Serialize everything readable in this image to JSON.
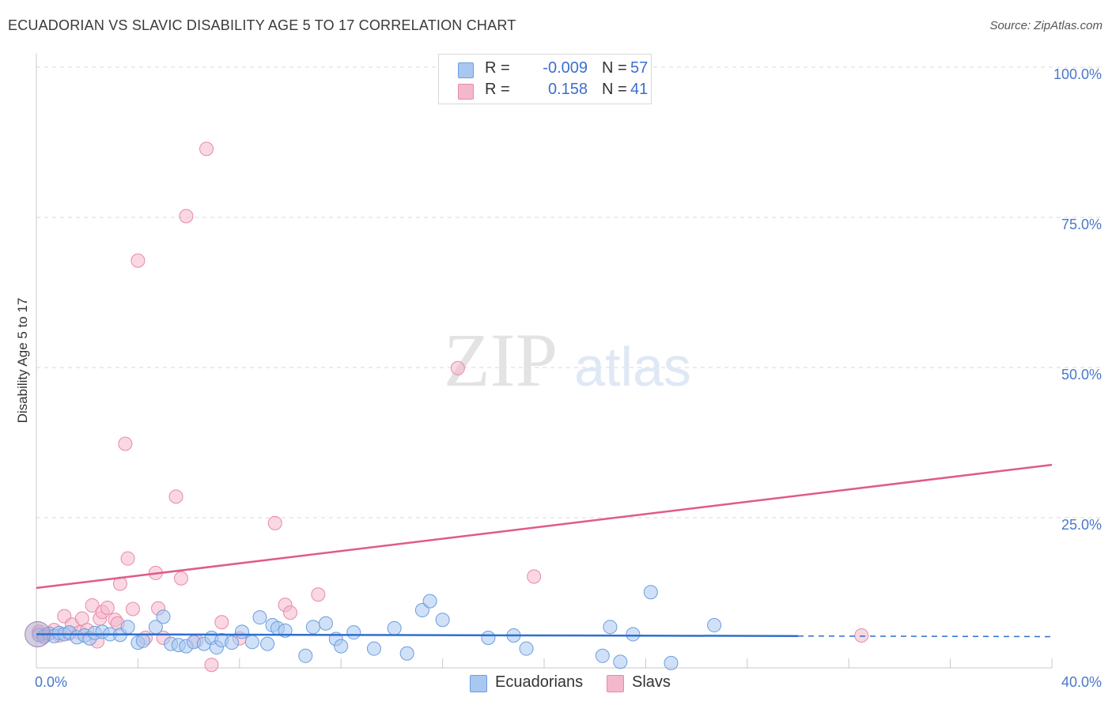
{
  "title": "ECUADORIAN VS SLAVIC DISABILITY AGE 5 TO 17 CORRELATION CHART",
  "source": "Source: ZipAtlas.com",
  "watermark": {
    "zip": "ZIP",
    "atlas": "atlas"
  },
  "legend": {
    "rows": [
      {
        "r_label": "R =",
        "r_value": "-0.009",
        "n_label": "N =",
        "n_value": "57"
      },
      {
        "r_label": "R =",
        "r_value": "0.158",
        "n_label": "N =",
        "n_value": "41"
      }
    ]
  },
  "bottom_legend": {
    "ecuadorians": "Ecuadorians",
    "slavs": "Slavs"
  },
  "colors": {
    "blue_fill": "#a9c8f0",
    "blue_stroke": "#6b9de0",
    "blue_line": "#2e6fd0",
    "pink_fill": "#f4b8cc",
    "pink_stroke": "#e889a8",
    "pink_line": "#e05a8a",
    "grid": "#d9d9d9",
    "tick": "#4a78c8"
  },
  "chart_data": {
    "type": "scatter",
    "title": "ECUADORIAN VS SLAVIC DISABILITY AGE 5 TO 17 CORRELATION CHART",
    "xlabel": "",
    "ylabel": "Disability Age 5 to 17",
    "xlim": [
      0,
      40
    ],
    "ylim": [
      0,
      100
    ],
    "x_tick_labels": [
      "0.0%",
      "40.0%"
    ],
    "y_ticks": [
      25,
      50,
      75,
      100
    ],
    "y_tick_labels": [
      "25.0%",
      "50.0%",
      "75.0%",
      "100.0%"
    ],
    "series": [
      {
        "name": "Ecuadorians",
        "r": -0.009,
        "n": 57,
        "trend": {
          "x0": 0,
          "y0": 5.6,
          "x1": 30,
          "y1": 5.3,
          "dash_to_x": 40,
          "dash_y": 5.2
        },
        "points": [
          [
            0.1,
            5.5
          ],
          [
            0.3,
            5.2
          ],
          [
            0.5,
            5.7
          ],
          [
            0.7,
            5.3
          ],
          [
            0.9,
            5.8
          ],
          [
            1.1,
            5.6
          ],
          [
            1.3,
            5.9
          ],
          [
            1.6,
            5.1
          ],
          [
            1.9,
            5.4
          ],
          [
            2.1,
            4.9
          ],
          [
            2.3,
            5.8
          ],
          [
            2.6,
            6.0
          ],
          [
            2.9,
            5.6
          ],
          [
            3.3,
            5.5
          ],
          [
            3.6,
            6.8
          ],
          [
            4.0,
            4.2
          ],
          [
            4.2,
            4.5
          ],
          [
            4.7,
            6.8
          ],
          [
            5.0,
            8.5
          ],
          [
            5.3,
            4.0
          ],
          [
            5.6,
            3.8
          ],
          [
            5.9,
            3.6
          ],
          [
            6.2,
            4.3
          ],
          [
            6.6,
            4.0
          ],
          [
            6.9,
            5.0
          ],
          [
            7.1,
            3.4
          ],
          [
            7.3,
            4.6
          ],
          [
            7.7,
            4.2
          ],
          [
            8.1,
            6.0
          ],
          [
            8.5,
            4.3
          ],
          [
            8.8,
            8.4
          ],
          [
            9.1,
            4.0
          ],
          [
            9.3,
            7.1
          ],
          [
            9.5,
            6.6
          ],
          [
            9.8,
            6.2
          ],
          [
            10.6,
            2.0
          ],
          [
            10.9,
            6.8
          ],
          [
            11.4,
            7.4
          ],
          [
            11.8,
            4.8
          ],
          [
            12.0,
            3.6
          ],
          [
            12.5,
            5.9
          ],
          [
            13.3,
            3.2
          ],
          [
            14.1,
            6.6
          ],
          [
            14.6,
            2.4
          ],
          [
            15.2,
            9.6
          ],
          [
            15.5,
            11.1
          ],
          [
            16.0,
            8.0
          ],
          [
            17.8,
            5.0
          ],
          [
            18.8,
            5.4
          ],
          [
            19.3,
            3.2
          ],
          [
            22.3,
            2.0
          ],
          [
            22.6,
            6.8
          ],
          [
            23.0,
            1.0
          ],
          [
            23.5,
            5.6
          ],
          [
            24.2,
            12.6
          ],
          [
            25.0,
            0.8
          ],
          [
            26.7,
            7.1
          ]
        ]
      },
      {
        "name": "Slavs",
        "r": 0.158,
        "n": 41,
        "trend": {
          "x0": 0,
          "y0": 13.3,
          "x1": 40,
          "y1": 33.8
        },
        "points": [
          [
            0.1,
            6.0
          ],
          [
            0.4,
            5.5
          ],
          [
            0.7,
            6.3
          ],
          [
            0.9,
            5.4
          ],
          [
            1.1,
            8.6
          ],
          [
            1.3,
            5.7
          ],
          [
            1.4,
            7.2
          ],
          [
            1.7,
            5.9
          ],
          [
            1.8,
            8.2
          ],
          [
            2.0,
            6.3
          ],
          [
            2.2,
            10.4
          ],
          [
            2.4,
            4.4
          ],
          [
            2.5,
            8.2
          ],
          [
            2.6,
            9.3
          ],
          [
            2.8,
            10.0
          ],
          [
            3.1,
            8.0
          ],
          [
            3.2,
            7.4
          ],
          [
            3.3,
            14.0
          ],
          [
            3.5,
            37.3
          ],
          [
            3.6,
            18.2
          ],
          [
            3.8,
            9.8
          ],
          [
            4.0,
            67.8
          ],
          [
            4.3,
            5.0
          ],
          [
            4.7,
            15.8
          ],
          [
            4.8,
            9.9
          ],
          [
            5.0,
            5.0
          ],
          [
            5.5,
            28.5
          ],
          [
            5.7,
            14.9
          ],
          [
            5.9,
            75.2
          ],
          [
            6.3,
            4.5
          ],
          [
            6.7,
            86.4
          ],
          [
            6.9,
            0.5
          ],
          [
            7.3,
            7.6
          ],
          [
            8.0,
            4.9
          ],
          [
            9.4,
            24.1
          ],
          [
            9.8,
            10.5
          ],
          [
            10.0,
            9.2
          ],
          [
            11.1,
            12.2
          ],
          [
            16.6,
            49.9
          ],
          [
            19.6,
            15.2
          ],
          [
            32.5,
            5.4
          ]
        ]
      }
    ]
  }
}
